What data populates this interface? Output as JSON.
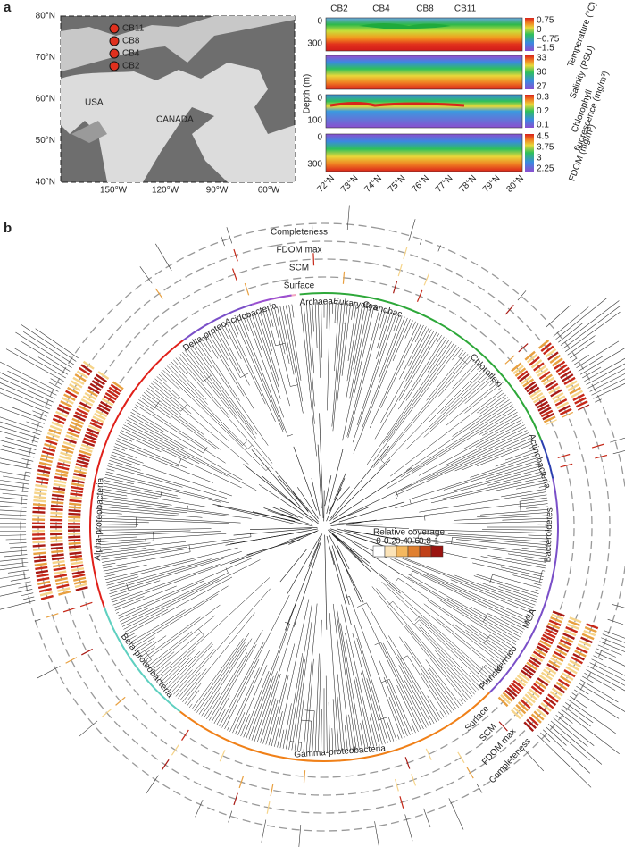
{
  "panel_a": {
    "label": "a",
    "map": {
      "lat_labels": [
        "80°N",
        "70°N",
        "60°N",
        "50°N",
        "40°N"
      ],
      "lon_labels": [
        "150°W",
        "120°W",
        "90°W",
        "60°W"
      ],
      "stations": [
        "CB11",
        "CB8",
        "CB4",
        "CB2"
      ],
      "regions": [
        "USA",
        "CANADA"
      ]
    },
    "sections": {
      "stations": [
        "CB2",
        "CB4",
        "CB8",
        "CB11"
      ],
      "y_label": "Depth (m)",
      "x_labels": [
        "72°N",
        "73°N",
        "74°N",
        "75°N",
        "76°N",
        "77°N",
        "78°N",
        "79°N",
        "80°N"
      ],
      "panels": [
        {
          "variable": [
            "Temperature (°C)"
          ],
          "depth_ticks": [
            "0",
            "300"
          ],
          "scale": [
            "0.75",
            "0",
            "−0.75",
            "−1.5"
          ]
        },
        {
          "variable": [
            "Salinity (PSU)"
          ],
          "depth_ticks": [],
          "scale": [
            "33",
            "30",
            "27"
          ]
        },
        {
          "variable": [
            "Chlorophyll",
            "fluorescence (mg/m³)"
          ],
          "depth_ticks": [
            "0",
            "100"
          ],
          "scale": [
            "0.3",
            "0.2",
            "0.1"
          ]
        },
        {
          "variable": [
            "FDOM (mg/m³)"
          ],
          "depth_ticks": [
            "0",
            "300"
          ],
          "scale": [
            "4.5",
            "3.75",
            "3",
            "2.25"
          ]
        }
      ]
    }
  },
  "panel_b": {
    "label": "b",
    "rings": [
      "Completeness",
      "FDOM max",
      "SCM",
      "Surface"
    ],
    "rings_lower": [
      "Surface",
      "SCM",
      "FDOM max",
      "Completeness"
    ],
    "clades": [
      "Archaea",
      "Eukaryotes",
      "Cyanobac",
      "Chloroflexi",
      "Actinobacteria",
      "Bacteroidetes",
      "MGA",
      "Verruco",
      "Plancto",
      "Gamma-proteobacteria",
      "Beta-proteobacteria",
      "Alpha-proteobacteria",
      "Delta-proteo",
      "Acidobacteria"
    ],
    "legend": {
      "title": "Relative coverage",
      "ticks": [
        "0",
        "0.2",
        "0.4",
        "0.6",
        "0.8",
        "1"
      ]
    }
  }
}
